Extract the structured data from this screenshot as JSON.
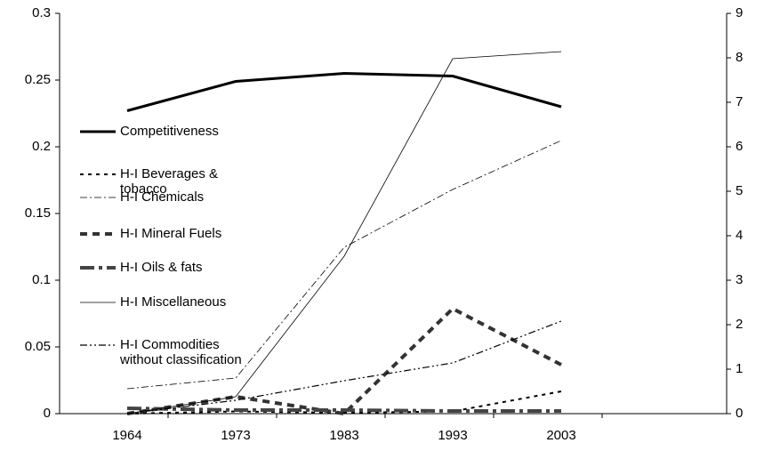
{
  "chart_data": {
    "type": "line",
    "categories": [
      "1964",
      "1973",
      "1983",
      "1993",
      "2003"
    ],
    "ylim": [
      0,
      0.3
    ],
    "yticks": [
      0,
      0.05,
      0.1,
      0.15,
      0.2,
      0.25,
      0.3
    ],
    "y2lim": [
      0,
      9
    ],
    "y2ticks": [
      0,
      1,
      2,
      3,
      4,
      5,
      6,
      7,
      8,
      9
    ],
    "series": [
      {
        "name": "Competitiveness",
        "color": "#000000",
        "width": 3,
        "dash": "none",
        "values": [
          0.227,
          0.249,
          0.255,
          0.253,
          0.23
        ]
      },
      {
        "name": "H-I Beverages & tobacco",
        "color": "#000000",
        "width": 2,
        "dash": "4 5",
        "axis": "y2",
        "values": [
          0,
          0.05,
          0.02,
          0.05,
          0.5
        ]
      },
      {
        "name": "H-I Chemicals",
        "color": "#000000",
        "width": 0.8,
        "dash": "8 3 2 3",
        "axis": "y2",
        "values": [
          0.56,
          0.8,
          3.74,
          5.04,
          6.14
        ]
      },
      {
        "name": "H-I Mineral Fuels",
        "color": "#333333",
        "width": 4,
        "dash": "8 6",
        "axis": "y2",
        "values": [
          0,
          0.38,
          0,
          2.36,
          1.1
        ]
      },
      {
        "name": "H-I Oils & fats",
        "color": "#444444",
        "width": 4,
        "dash": "16 5 4 5",
        "axis": "y2",
        "values": [
          0.12,
          0.08,
          0.08,
          0.06,
          0.06
        ]
      },
      {
        "name": "H-I Miscellaneous",
        "color": "#000000",
        "width": 0.8,
        "dash": "none",
        "axis": "y2",
        "values": [
          0,
          0.38,
          3.54,
          7.98,
          8.14
        ]
      },
      {
        "name": "H-I Commodities without classification",
        "color": "#000000",
        "width": 1.2,
        "dash": "8 3 2 3 2 3",
        "axis": "y2",
        "values": [
          0,
          0.3,
          0.74,
          1.14,
          2.08
        ]
      }
    ]
  }
}
